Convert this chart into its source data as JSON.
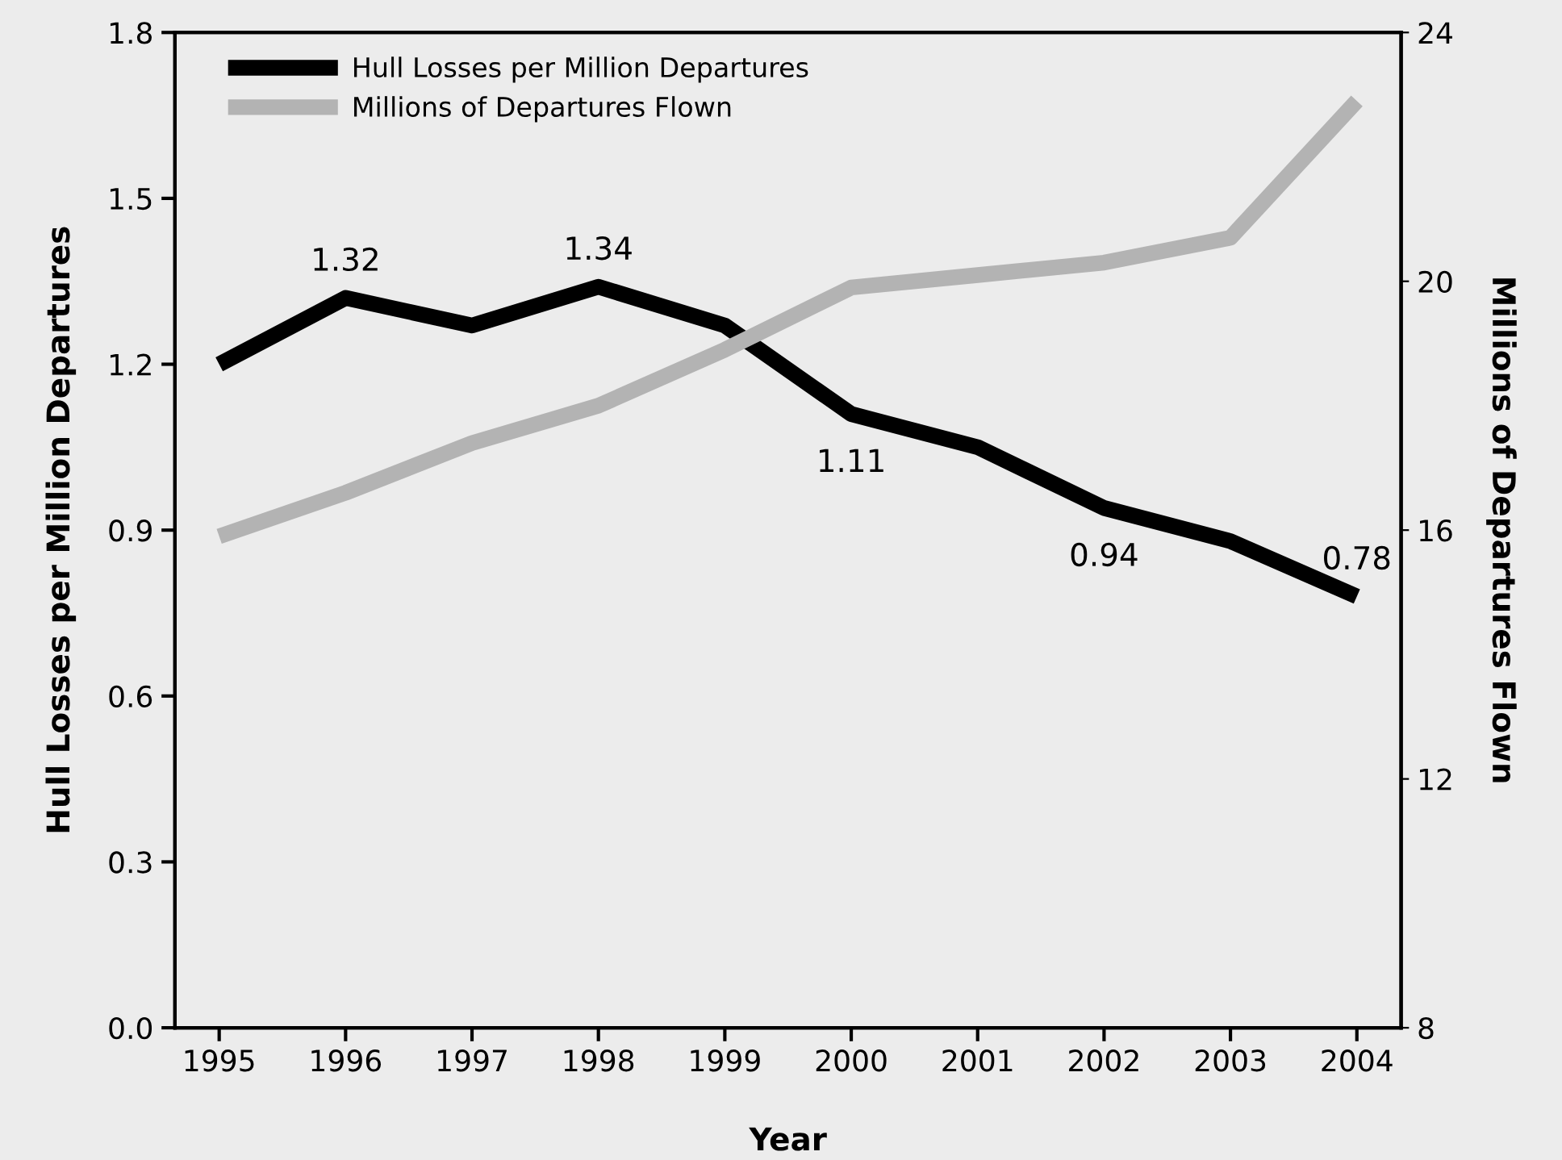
{
  "chart_data": {
    "type": "line",
    "categories": [
      "1995",
      "1996",
      "1997",
      "1998",
      "1999",
      "2000",
      "2001",
      "2002",
      "2003",
      "2004"
    ],
    "xlabel": "Year",
    "ylabel": "Hull Losses per Million Departures",
    "y2label": "Millions of Departures Flown",
    "ylim": [
      0,
      1.8
    ],
    "yticks": [
      {
        "value": 0,
        "label": "0.0"
      },
      0.3,
      0.6,
      0.9,
      1.2,
      1.5,
      1.8
    ],
    "y2lim": [
      8,
      24
    ],
    "y2ticks": [
      8,
      12,
      16,
      20,
      24
    ],
    "legend": "top left",
    "grid": false,
    "marker": "none",
    "line_style": "solid",
    "series": [
      {
        "name": "Hull Losses per Million Departures",
        "color": "#000000",
        "values": [
          1.2,
          1.32,
          1.27,
          1.34,
          1.27,
          1.11,
          1.05,
          0.94,
          0.88,
          0.78
        ],
        "value_labels": [
          null,
          "1.32",
          null,
          "1.34",
          null,
          "1.11",
          null,
          "0.94",
          null,
          "0.78"
        ]
      },
      {
        "name": "Millions of Departures Flown",
        "color": "#b3b3b3",
        "axis": "y2",
        "values": [
          15.9,
          16.6,
          17.4,
          18.0,
          18.9,
          19.9,
          20.1,
          20.3,
          20.7,
          22.9
        ]
      }
    ]
  }
}
